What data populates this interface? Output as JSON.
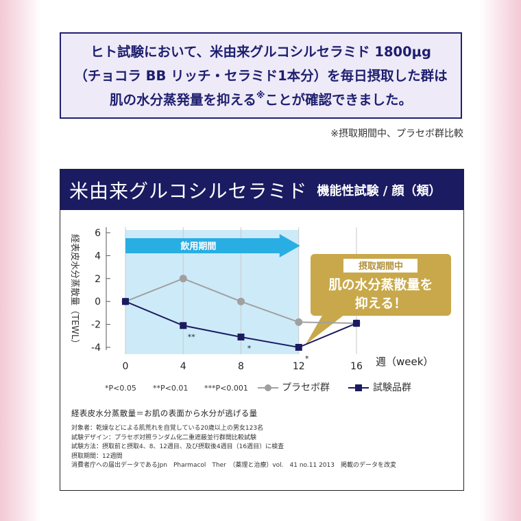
{
  "notice": {
    "line1": "ヒト試験において、米由来グルコシルセラミド 1800μg",
    "line2": "（チョコラ BB リッチ・セラミド1本分）を毎日摂取した群は",
    "line3_pre": "肌の水分蒸発量を抑える",
    "line3_mark": "※",
    "line3_post": "ことが確認できました。"
  },
  "footnote": "※摂取期間中、プラセボ群比較",
  "panel": {
    "title": "米由来グルコシルセラミド",
    "subtitle": "機能性試験 / 顔（頬）"
  },
  "chart_data": {
    "type": "line",
    "x": [
      0,
      4,
      8,
      12,
      16
    ],
    "xlabel": "週（week）",
    "ylabel": "経表皮水分蒸散量（TEWL）",
    "ylim": [
      -4,
      6
    ],
    "yticks": [
      6,
      4,
      2,
      0,
      -2,
      -4
    ],
    "series": [
      {
        "name": "プラセボ群",
        "values": [
          0,
          2,
          0,
          -1.8,
          -1.9
        ],
        "color": "#a0a0a0"
      },
      {
        "name": "試験品群",
        "values": [
          0,
          -2.1,
          -3.1,
          -4,
          -1.9
        ],
        "color": "#1b1b62"
      }
    ],
    "significance": [
      "",
      "**",
      "*",
      "*",
      ""
    ],
    "shaded_period": {
      "label": "飲用期間",
      "from": 0,
      "to": 12
    },
    "callout": {
      "tag": "摂取期間中",
      "text1": "肌の水分蒸散量を",
      "text2": "抑える！"
    },
    "legend": {
      "p05": "*P<0.05",
      "p01": "**P<0.01",
      "p001": "***P<0.001",
      "placebo": "プラセボ群",
      "test": "試験品群"
    },
    "grid": "vertical",
    "colors": {
      "shade": "#cdeaf8",
      "arrow": "#29aee4",
      "callout": "#c8a84a",
      "navy": "#1b1b62"
    }
  },
  "notes": {
    "lead": "経表皮水分蒸散量＝お肌の表面から水分が逃げる量",
    "lines": [
      "対象者：乾燥などによる肌荒れを自覚している20歳以上の男女123名",
      "試験デザイン：プラセボ対照ランダム化二重遮蔽並行群間比較試験",
      "試験方法：摂取前と摂取4、8、12週目、及び摂取後4週目（16週目）に検査",
      "摂取期間：12週間",
      "消費者庁への届出データであるJpn　Pharmacol　Ther　（薬理と治療）vol.　41 no.11 2013　掲載のデータを改変"
    ]
  }
}
